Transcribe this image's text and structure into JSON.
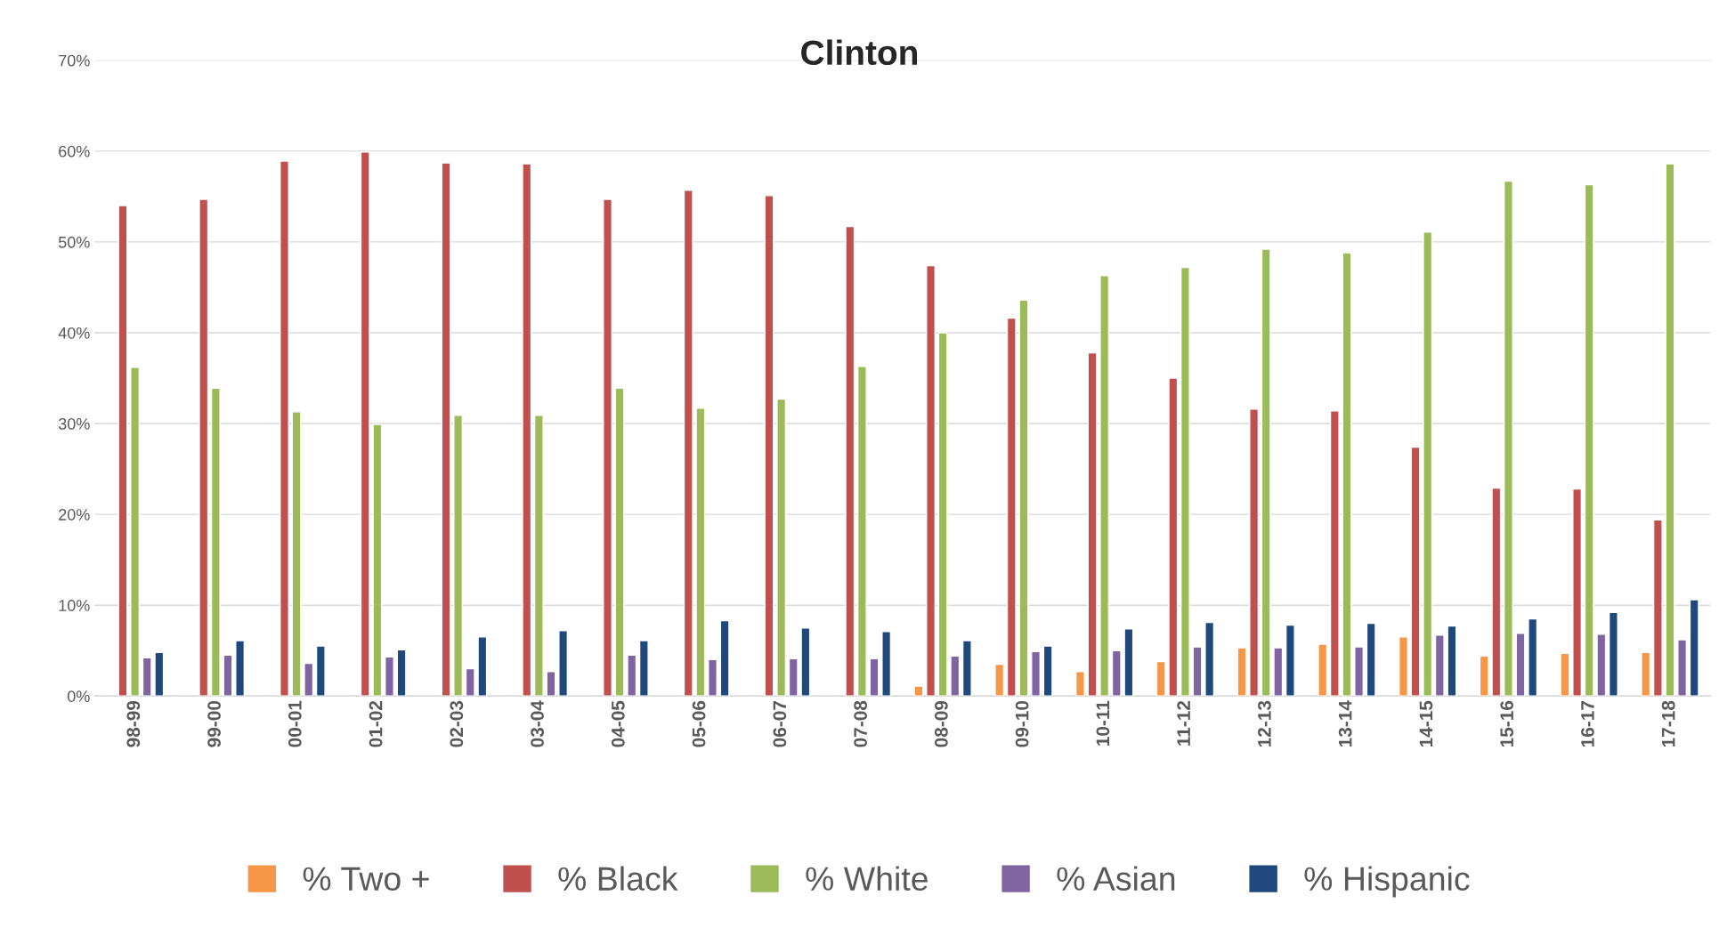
{
  "chart_data": {
    "type": "bar",
    "title": "Clinton",
    "categories": [
      "98-99",
      "99-00",
      "00-01",
      "01-02",
      "02-03",
      "03-04",
      "04-05",
      "05-06",
      "06-07",
      "07-08",
      "08-09",
      "09-10",
      "10-11",
      "11-12",
      "12-13",
      "13-14",
      "14-15",
      "15-16",
      "16-17",
      "17-18"
    ],
    "series": [
      {
        "name": "% Two +",
        "color": "#f79646",
        "values": [
          null,
          null,
          null,
          null,
          null,
          null,
          null,
          null,
          null,
          null,
          1.1,
          3.5,
          2.7,
          3.8,
          5.3,
          5.7,
          6.5,
          4.4,
          4.7,
          4.8
        ]
      },
      {
        "name": "% Black",
        "color": "#c0504d",
        "values": [
          54.0,
          54.7,
          58.9,
          59.9,
          58.7,
          58.6,
          54.7,
          55.7,
          55.1,
          51.7,
          47.4,
          41.6,
          37.8,
          35.0,
          31.6,
          31.4,
          27.4,
          22.9,
          22.8,
          19.4
        ]
      },
      {
        "name": "% White",
        "color": "#9bbb59",
        "values": [
          36.2,
          33.9,
          31.3,
          29.9,
          30.9,
          30.9,
          33.9,
          31.7,
          32.7,
          36.3,
          40.0,
          43.6,
          46.3,
          47.2,
          49.2,
          48.8,
          51.1,
          56.7,
          56.3,
          58.6
        ]
      },
      {
        "name": "% Asian",
        "color": "#8064a2",
        "values": [
          4.2,
          4.5,
          3.6,
          4.3,
          3.0,
          2.7,
          4.5,
          4.0,
          4.1,
          4.1,
          4.4,
          4.9,
          5.0,
          5.4,
          5.3,
          5.4,
          6.7,
          6.9,
          6.8,
          6.2
        ]
      },
      {
        "name": "% Hispanic",
        "color": "#1f497d",
        "values": [
          4.8,
          6.1,
          5.5,
          5.1,
          6.5,
          7.2,
          6.1,
          8.3,
          7.5,
          7.1,
          6.1,
          5.5,
          7.4,
          8.1,
          7.8,
          8.0,
          7.7,
          8.5,
          9.2,
          10.6
        ]
      }
    ],
    "ylim": [
      0,
      70
    ],
    "yticks": [
      {
        "value": 0,
        "label": "0%"
      },
      {
        "value": 10,
        "label": "10%"
      },
      {
        "value": 20,
        "label": "20%"
      },
      {
        "value": 30,
        "label": "30%"
      },
      {
        "value": 40,
        "label": "40%"
      },
      {
        "value": 50,
        "label": "50%"
      },
      {
        "value": 60,
        "label": "60%"
      },
      {
        "value": 70,
        "label": "70%"
      }
    ],
    "grid": "y",
    "legend": "bottom"
  }
}
